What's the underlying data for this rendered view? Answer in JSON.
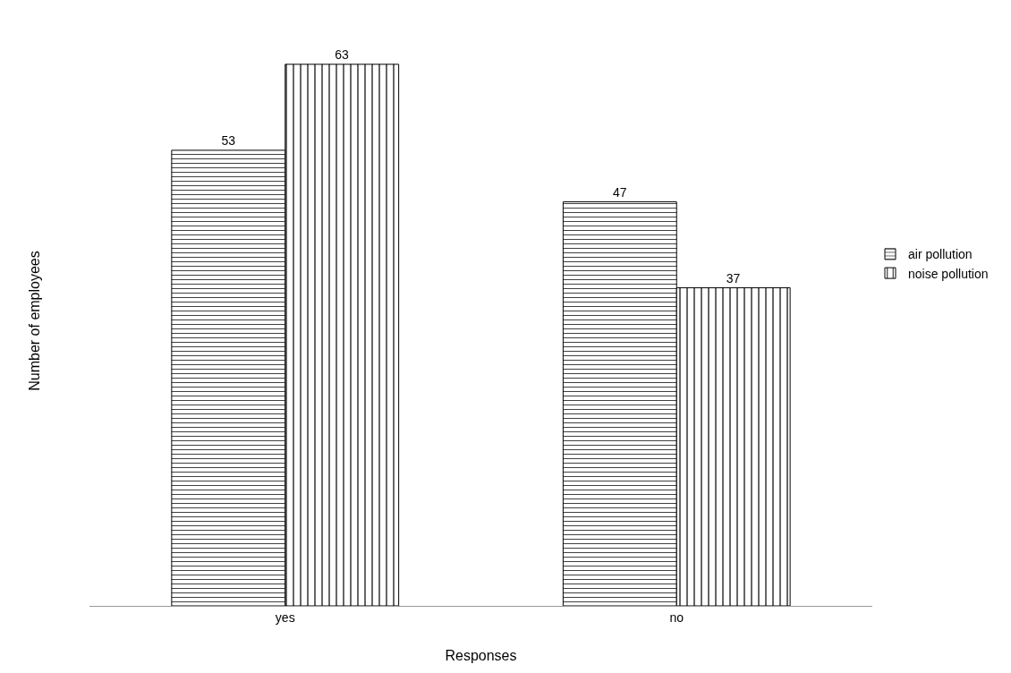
{
  "chart_data": {
    "type": "bar",
    "xlabel": "Responses",
    "ylabel": "Number of employees",
    "categories": [
      "yes",
      "no"
    ],
    "series": [
      {
        "name": "air pollution",
        "color": "#000000",
        "values": [
          53,
          47
        ]
      },
      {
        "name": "noise pollution",
        "color": "#000000",
        "values": [
          63,
          37
        ]
      }
    ],
    "data_labels": true,
    "grid": false,
    "legend": "right"
  }
}
